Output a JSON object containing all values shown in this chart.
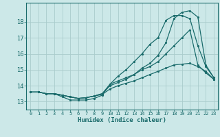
{
  "title": "",
  "xlabel": "Humidex (Indice chaleur)",
  "ylabel": "",
  "bg_color": "#cce8e8",
  "line_color": "#1a6b6b",
  "grid_color": "#aacccc",
  "xlim": [
    -0.5,
    23.5
  ],
  "ylim": [
    12.5,
    19.2
  ],
  "xticks": [
    0,
    1,
    2,
    3,
    4,
    5,
    6,
    7,
    8,
    9,
    10,
    11,
    12,
    13,
    14,
    15,
    16,
    17,
    18,
    19,
    20,
    21,
    22,
    23
  ],
  "yticks": [
    13,
    14,
    15,
    16,
    17,
    18
  ],
  "curve1_x": [
    0,
    1,
    2,
    3,
    4,
    5,
    6,
    7,
    8,
    9,
    10,
    11,
    12,
    13,
    14,
    15,
    16,
    17,
    18,
    19,
    20,
    21,
    22,
    23
  ],
  "curve1_y": [
    13.6,
    13.6,
    13.5,
    13.5,
    13.3,
    13.1,
    13.1,
    13.1,
    13.2,
    13.4,
    14.1,
    14.6,
    15.0,
    15.5,
    16.0,
    16.6,
    17.0,
    18.1,
    18.4,
    18.4,
    18.2,
    16.5,
    15.2,
    14.5
  ],
  "curve2_x": [
    0,
    1,
    2,
    3,
    4,
    5,
    6,
    7,
    8,
    9,
    10,
    11,
    12,
    13,
    14,
    15,
    16,
    17,
    18,
    19,
    20,
    21,
    22,
    23
  ],
  "curve2_y": [
    13.6,
    13.6,
    13.5,
    13.5,
    13.4,
    13.3,
    13.2,
    13.25,
    13.35,
    13.5,
    14.0,
    14.2,
    14.4,
    14.7,
    15.1,
    15.4,
    15.9,
    16.7,
    18.2,
    18.6,
    18.7,
    18.3,
    15.3,
    14.5
  ],
  "curve3_x": [
    0,
    1,
    2,
    3,
    4,
    5,
    6,
    7,
    8,
    9,
    10,
    11,
    12,
    13,
    14,
    15,
    16,
    17,
    18,
    19,
    20,
    21,
    22,
    23
  ],
  "curve3_y": [
    13.6,
    13.6,
    13.5,
    13.5,
    13.4,
    13.3,
    13.2,
    13.25,
    13.35,
    13.5,
    14.1,
    14.3,
    14.5,
    14.7,
    15.0,
    15.2,
    15.5,
    16.0,
    16.5,
    17.0,
    17.5,
    15.3,
    14.8,
    14.4
  ],
  "curve4_x": [
    0,
    1,
    2,
    3,
    4,
    5,
    6,
    7,
    8,
    9,
    10,
    11,
    12,
    13,
    14,
    15,
    16,
    17,
    18,
    19,
    20,
    21,
    22,
    23
  ],
  "curve4_y": [
    13.6,
    13.6,
    13.5,
    13.5,
    13.4,
    13.3,
    13.2,
    13.25,
    13.35,
    13.45,
    13.8,
    14.0,
    14.15,
    14.3,
    14.5,
    14.7,
    14.9,
    15.1,
    15.3,
    15.35,
    15.4,
    15.2,
    14.9,
    14.4
  ]
}
